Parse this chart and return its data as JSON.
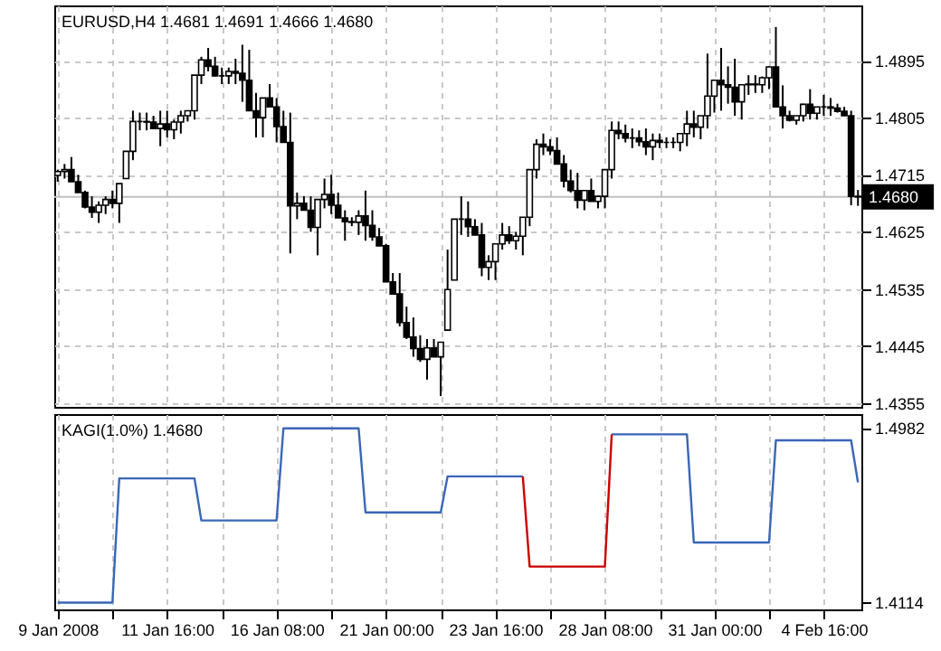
{
  "chart_data": [
    {
      "type": "candlestick",
      "title": "EURUSD,H4 1.4681 1.4691 1.4666 1.4680",
      "categories": [
        null,
        null,
        null,
        null,
        null,
        null,
        null,
        null,
        null,
        null,
        null,
        null,
        null,
        null,
        null,
        null,
        null,
        null,
        null,
        null,
        null,
        null,
        null,
        null,
        null,
        null,
        null,
        null,
        null,
        null,
        null,
        null,
        null,
        null,
        null,
        null,
        null,
        null,
        null,
        null,
        null,
        null,
        null,
        null,
        null,
        null,
        null,
        null,
        null,
        null,
        null,
        null,
        null,
        null,
        null,
        null,
        null,
        null,
        null,
        null,
        null,
        null,
        null,
        null,
        null,
        null,
        null,
        null,
        null,
        null,
        null,
        null,
        null,
        null,
        null,
        null,
        null,
        null,
        null,
        null,
        null,
        null,
        null,
        null,
        null,
        null,
        null,
        null,
        null,
        null,
        null,
        null,
        null,
        null,
        null,
        null,
        null,
        null,
        null,
        null,
        null,
        null,
        null,
        null,
        null,
        null,
        null,
        null,
        null,
        null,
        null,
        null,
        null,
        null,
        null,
        null,
        null,
        null
      ],
      "ohlc": [
        [
          1.4714,
          1.4723,
          1.4704,
          1.472
        ],
        [
          1.472,
          1.4732,
          1.4709,
          1.4723
        ],
        [
          1.4723,
          1.4743,
          1.4704,
          1.4704
        ],
        [
          1.4704,
          1.4715,
          1.4687,
          1.4687
        ],
        [
          1.4687,
          1.469,
          1.4662,
          1.4664
        ],
        [
          1.4664,
          1.4681,
          1.4647,
          1.4656
        ],
        [
          1.4656,
          1.4673,
          1.4639,
          1.4667
        ],
        [
          1.4667,
          1.4681,
          1.4653,
          1.4676
        ],
        [
          1.4676,
          1.469,
          1.4662,
          1.467
        ],
        [
          1.467,
          1.4701,
          1.4639,
          1.4701
        ],
        [
          1.4709,
          1.4752,
          1.4709,
          1.4752
        ],
        [
          1.4752,
          1.4816,
          1.4738,
          1.4799
        ],
        [
          1.4799,
          1.4813,
          1.4785,
          1.4799
        ],
        [
          1.4799,
          1.4813,
          1.4785,
          1.4798
        ],
        [
          1.4798,
          1.4808,
          1.4788,
          1.4788
        ],
        [
          1.4788,
          1.4816,
          1.476,
          1.4795
        ],
        [
          1.4795,
          1.4816,
          1.4774,
          1.4786
        ],
        [
          1.4786,
          1.4802,
          1.4771,
          1.4798
        ],
        [
          1.4798,
          1.4816,
          1.478,
          1.4808
        ],
        [
          1.4808,
          1.4816,
          1.4799,
          1.4816
        ],
        [
          1.4816,
          1.4872,
          1.4802,
          1.4872
        ],
        [
          1.4872,
          1.4901,
          1.4858,
          1.4896
        ],
        [
          1.4896,
          1.4915,
          1.4878,
          1.4886
        ],
        [
          1.4886,
          1.4901,
          1.487,
          1.4871
        ],
        [
          1.4871,
          1.4884,
          1.4858,
          1.4871
        ],
        [
          1.4871,
          1.4884,
          1.4858,
          1.4878
        ],
        [
          1.4878,
          1.4898,
          1.4858,
          1.4875
        ],
        [
          1.4875,
          1.492,
          1.483,
          1.4864
        ],
        [
          1.4864,
          1.4912,
          1.4816,
          1.4816
        ],
        [
          1.4816,
          1.4844,
          1.4774,
          1.4805
        ],
        [
          1.4805,
          1.4836,
          1.4774,
          1.4836
        ],
        [
          1.4836,
          1.4858,
          1.4822,
          1.4822
        ],
        [
          1.4822,
          1.4836,
          1.4766,
          1.4791
        ],
        [
          1.4791,
          1.4816,
          1.4766,
          1.4766
        ],
        [
          1.4766,
          1.4813,
          1.4591,
          1.4666
        ],
        [
          1.4666,
          1.4687,
          1.4645,
          1.467
        ],
        [
          1.467,
          1.4681,
          1.4659,
          1.4659
        ],
        [
          1.4659,
          1.4681,
          1.4625,
          1.4632
        ],
        [
          1.4632,
          1.4676,
          1.4588,
          1.4676
        ],
        [
          1.4676,
          1.4709,
          1.4662,
          1.4684
        ],
        [
          1.4684,
          1.4715,
          1.4653,
          1.4667
        ],
        [
          1.4667,
          1.4687,
          1.4647,
          1.4647
        ],
        [
          1.4647,
          1.4659,
          1.4611,
          1.4641
        ],
        [
          1.4641,
          1.4648,
          1.4634,
          1.464
        ],
        [
          1.464,
          1.4659,
          1.462,
          1.465
        ],
        [
          1.465,
          1.469,
          1.4611,
          1.4635
        ],
        [
          1.4635,
          1.4659,
          1.4611,
          1.4617
        ],
        [
          1.4617,
          1.4631,
          1.4603,
          1.4603
        ],
        [
          1.4603,
          1.4606,
          1.4546,
          1.4546
        ],
        [
          1.4546,
          1.456,
          1.4527,
          1.4527
        ],
        [
          1.4527,
          1.456,
          1.4476,
          1.4482
        ],
        [
          1.4482,
          1.4507,
          1.4456,
          1.4459
        ],
        [
          1.4459,
          1.449,
          1.4428,
          1.4441
        ],
        [
          1.4441,
          1.4462,
          1.442,
          1.4424
        ],
        [
          1.4424,
          1.4456,
          1.4392,
          1.4442
        ],
        [
          1.4442,
          1.4456,
          1.4428,
          1.4428
        ],
        [
          1.4428,
          1.4451,
          1.4366,
          1.4451
        ],
        [
          1.447,
          1.4597,
          1.447,
          1.4534
        ],
        [
          1.4549,
          1.4645,
          1.4549,
          1.4645
        ],
        [
          1.4645,
          1.4681,
          1.462,
          1.4645
        ],
        [
          1.4645,
          1.4673,
          1.4617,
          1.4633
        ],
        [
          1.4633,
          1.4645,
          1.462,
          1.462
        ],
        [
          1.462,
          1.4639,
          1.4555,
          1.4569
        ],
        [
          1.4569,
          1.4588,
          1.4549,
          1.4578
        ],
        [
          1.4578,
          1.4606,
          1.4549,
          1.4606
        ],
        [
          1.4606,
          1.4639,
          1.4597,
          1.462
        ],
        [
          1.462,
          1.4634,
          1.4606,
          1.4611
        ],
        [
          1.4611,
          1.4625,
          1.4597,
          1.4618
        ],
        [
          1.4618,
          1.4648,
          1.4588,
          1.4648
        ],
        [
          1.4648,
          1.4723,
          1.4634,
          1.4723
        ],
        [
          1.4723,
          1.4771,
          1.4709,
          1.4763
        ],
        [
          1.4763,
          1.478,
          1.4746,
          1.4759
        ],
        [
          1.4759,
          1.4771,
          1.4746,
          1.4753
        ],
        [
          1.4753,
          1.4774,
          1.4732,
          1.4732
        ],
        [
          1.4732,
          1.4746,
          1.4695,
          1.4705
        ],
        [
          1.4705,
          1.4723,
          1.4687,
          1.469
        ],
        [
          1.469,
          1.4718,
          1.4662,
          1.4675
        ],
        [
          1.4675,
          1.469,
          1.4659,
          1.469
        ],
        [
          1.469,
          1.4709,
          1.4673,
          1.4673
        ],
        [
          1.4673,
          1.4681,
          1.4662,
          1.4681
        ],
        [
          1.4681,
          1.4723,
          1.4662,
          1.4723
        ],
        [
          1.4723,
          1.4799,
          1.4709,
          1.4785
        ],
        [
          1.4785,
          1.4799,
          1.4771,
          1.478
        ],
        [
          1.478,
          1.4794,
          1.4766,
          1.4773
        ],
        [
          1.4773,
          1.4788,
          1.4757,
          1.4773
        ],
        [
          1.4773,
          1.4785,
          1.476,
          1.4767
        ],
        [
          1.4767,
          1.4788,
          1.4746,
          1.4759
        ],
        [
          1.4759,
          1.478,
          1.4738,
          1.4769
        ],
        [
          1.4769,
          1.478,
          1.4757,
          1.4766
        ],
        [
          1.4766,
          1.4774,
          1.4757,
          1.4766
        ],
        [
          1.4766,
          1.4774,
          1.4757,
          1.4766
        ],
        [
          1.4766,
          1.478,
          1.4752,
          1.478
        ],
        [
          1.478,
          1.4816,
          1.476,
          1.4795
        ],
        [
          1.4795,
          1.4816,
          1.4774,
          1.479
        ],
        [
          1.479,
          1.4808,
          1.4771,
          1.4808
        ],
        [
          1.4808,
          1.4906,
          1.4788,
          1.4839
        ],
        [
          1.4839,
          1.4864,
          1.4813,
          1.4864
        ],
        [
          1.4864,
          1.4915,
          1.4816,
          1.4857
        ],
        [
          1.4857,
          1.4886,
          1.4827,
          1.4853
        ],
        [
          1.4853,
          1.4898,
          1.4808,
          1.483
        ],
        [
          1.483,
          1.4858,
          1.4802,
          1.4857
        ],
        [
          1.4857,
          1.4872,
          1.4841,
          1.4858
        ],
        [
          1.4858,
          1.4872,
          1.4844,
          1.4857
        ],
        [
          1.4857,
          1.487,
          1.4844,
          1.4868
        ],
        [
          1.4868,
          1.4886,
          1.485,
          1.4885
        ],
        [
          1.4885,
          1.4948,
          1.4822,
          1.4822
        ],
        [
          1.4822,
          1.4856,
          1.4788,
          1.4808
        ],
        [
          1.4808,
          1.4816,
          1.4799,
          1.4801
        ],
        [
          1.4801,
          1.4808,
          1.4794,
          1.4808
        ],
        [
          1.4808,
          1.4827,
          1.4799,
          1.4826
        ],
        [
          1.4826,
          1.485,
          1.4802,
          1.4812
        ],
        [
          1.4812,
          1.4822,
          1.4802,
          1.4822
        ],
        [
          1.4822,
          1.4841,
          1.4808,
          1.4822
        ],
        [
          1.4822,
          1.4836,
          1.4808,
          1.482
        ],
        [
          1.482,
          1.4827,
          1.4813,
          1.4815
        ],
        [
          1.4815,
          1.4822,
          1.4808,
          1.4808
        ],
        [
          1.4808,
          1.4816,
          1.4667,
          1.4681
        ],
        [
          1.4681,
          1.4691,
          1.4666,
          1.468
        ]
      ],
      "color": "#000000",
      "ylim": [
        1.4349,
        1.4982
      ],
      "yticks": [
        1.4355,
        1.4445,
        1.4535,
        1.4625,
        1.4715,
        1.4805,
        1.4895
      ],
      "ref_lines": [
        {
          "axis": "y",
          "value": 1.468,
          "label": "1.4680",
          "color": "#c0c0c0"
        }
      ],
      "grid": true,
      "tick_labels": "y"
    },
    {
      "type": "line",
      "title": "KAGI(1.0%) 1.4680",
      "categories": [
        "9 Jan 2008",
        null,
        null,
        null,
        null,
        null,
        null,
        null,
        null,
        null,
        null,
        null,
        null,
        null,
        null,
        null,
        "11 Jan 16:00",
        null,
        null,
        null,
        null,
        null,
        null,
        null,
        null,
        null,
        null,
        null,
        null,
        null,
        null,
        null,
        "16 Jan 08:00",
        null,
        null,
        null,
        null,
        null,
        null,
        null,
        null,
        null,
        null,
        null,
        null,
        null,
        null,
        null,
        "21 Jan 00:00",
        null,
        null,
        null,
        null,
        null,
        null,
        null,
        null,
        null,
        null,
        null,
        null,
        null,
        null,
        null,
        "23 Jan 16:00",
        null,
        null,
        null,
        null,
        null,
        null,
        null,
        null,
        null,
        null,
        null,
        null,
        null,
        null,
        null,
        "28 Jan 08:00",
        null,
        null,
        null,
        null,
        null,
        null,
        null,
        null,
        null,
        null,
        null,
        null,
        null,
        null,
        null,
        "31 Jan 00:00",
        null,
        null,
        null,
        null,
        null,
        null,
        null,
        null,
        null,
        null,
        null,
        null,
        null,
        null,
        null,
        "4 Feb 16:00",
        null,
        null,
        null,
        null,
        null
      ],
      "series": [
        {
          "color": "#3a66b8",
          "values": [
            1.411,
            1.411,
            1.411,
            1.411,
            1.411,
            1.411,
            1.411,
            1.411,
            1.411,
            1.473,
            1.473,
            1.473,
            1.473,
            1.473,
            1.473,
            1.473,
            1.473,
            1.473,
            1.473,
            1.473,
            1.473,
            1.452,
            1.452,
            1.452,
            1.452,
            1.452,
            1.452,
            1.452,
            1.452,
            1.452,
            1.452,
            1.452,
            1.452,
            1.498,
            1.498,
            1.498,
            1.498,
            1.498,
            1.498,
            1.498,
            1.498,
            1.498,
            1.498,
            1.498,
            1.498,
            1.456,
            1.456,
            1.456,
            1.456,
            1.456,
            1.456,
            1.456,
            1.456,
            1.456,
            1.456,
            1.456,
            1.456,
            1.474,
            1.474,
            1.474,
            1.474,
            1.474,
            1.474,
            1.474,
            1.474,
            1.474,
            1.474,
            1.474,
            1.474,
            null,
            null,
            null,
            null,
            null,
            null,
            null,
            null,
            null,
            null,
            null,
            null,
            1.495,
            1.495,
            1.495,
            1.495,
            1.495,
            1.495,
            1.495,
            1.495,
            1.495,
            1.495,
            1.495,
            1.495,
            1.441,
            1.441,
            1.441,
            1.441,
            1.441,
            1.441,
            1.441,
            1.441,
            1.441,
            1.441,
            1.441,
            1.441,
            1.492,
            1.492,
            1.492,
            1.492,
            1.492,
            1.492,
            1.492,
            1.492,
            1.492,
            1.492,
            1.492,
            1.492,
            1.471
          ]
        },
        {
          "color": "#cc0000",
          "values": [
            null,
            null,
            null,
            null,
            null,
            null,
            null,
            null,
            null,
            null,
            null,
            null,
            null,
            null,
            null,
            null,
            null,
            null,
            null,
            null,
            null,
            null,
            null,
            null,
            null,
            null,
            null,
            null,
            null,
            null,
            null,
            null,
            null,
            null,
            null,
            null,
            null,
            null,
            null,
            null,
            null,
            null,
            null,
            null,
            null,
            null,
            null,
            null,
            null,
            null,
            null,
            null,
            null,
            null,
            null,
            null,
            null,
            null,
            null,
            null,
            null,
            null,
            null,
            null,
            null,
            null,
            null,
            null,
            1.474,
            1.429,
            1.429,
            1.429,
            1.429,
            1.429,
            1.429,
            1.429,
            1.429,
            1.429,
            1.429,
            1.429,
            1.429,
            1.495,
            null,
            null,
            null,
            null,
            null,
            null,
            null,
            null,
            null,
            null,
            null,
            null,
            null,
            null,
            null,
            null,
            null,
            null,
            null,
            null,
            null,
            null,
            null,
            null,
            null,
            null,
            null,
            null,
            null,
            null,
            null,
            null,
            null,
            null,
            null,
            null
          ]
        }
      ],
      "ylim": [
        1.4076,
        1.5051
      ],
      "yticks": [
        1.4114,
        1.4982
      ],
      "grid": "x",
      "line_style": "solid"
    }
  ]
}
